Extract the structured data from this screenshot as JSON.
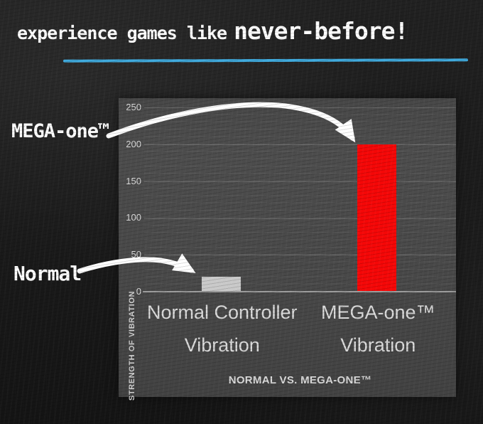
{
  "headline": {
    "part1": "experience games like",
    "part2": "never-before!"
  },
  "annotations": {
    "mega_label": "MEGA-one™",
    "normal_label": "Normal"
  },
  "chart_data": {
    "type": "bar",
    "title": "",
    "categories": [
      "Normal Controller Vibration",
      "MEGA-one™ Vibration"
    ],
    "category_lines": [
      [
        "Normal Controller",
        "Vibration"
      ],
      [
        "MEGA-one™",
        "Vibration"
      ]
    ],
    "values": [
      20,
      200
    ],
    "bar_colors": [
      "#c9c9c9",
      "#f50707"
    ],
    "xlabel": "NORMAL VS. MEGA-ONE™",
    "ylabel": "STRENGTH OF VIBRATION",
    "ylim": [
      0,
      250
    ],
    "yticks": [
      250,
      200,
      150,
      100,
      50,
      0
    ],
    "grid": "horizontal, faint minor lines every 10 and major lines every 50",
    "legend": "none"
  },
  "colors": {
    "accent_blue": "#3fa9dc",
    "bar_red": "#f50707",
    "bar_gray": "#c9c9c9",
    "chalkboard": "#1b1b1b",
    "panel_gray": "#4a4a4a",
    "text_light": "#d9d9d9",
    "arrow_white": "#ffffff"
  }
}
